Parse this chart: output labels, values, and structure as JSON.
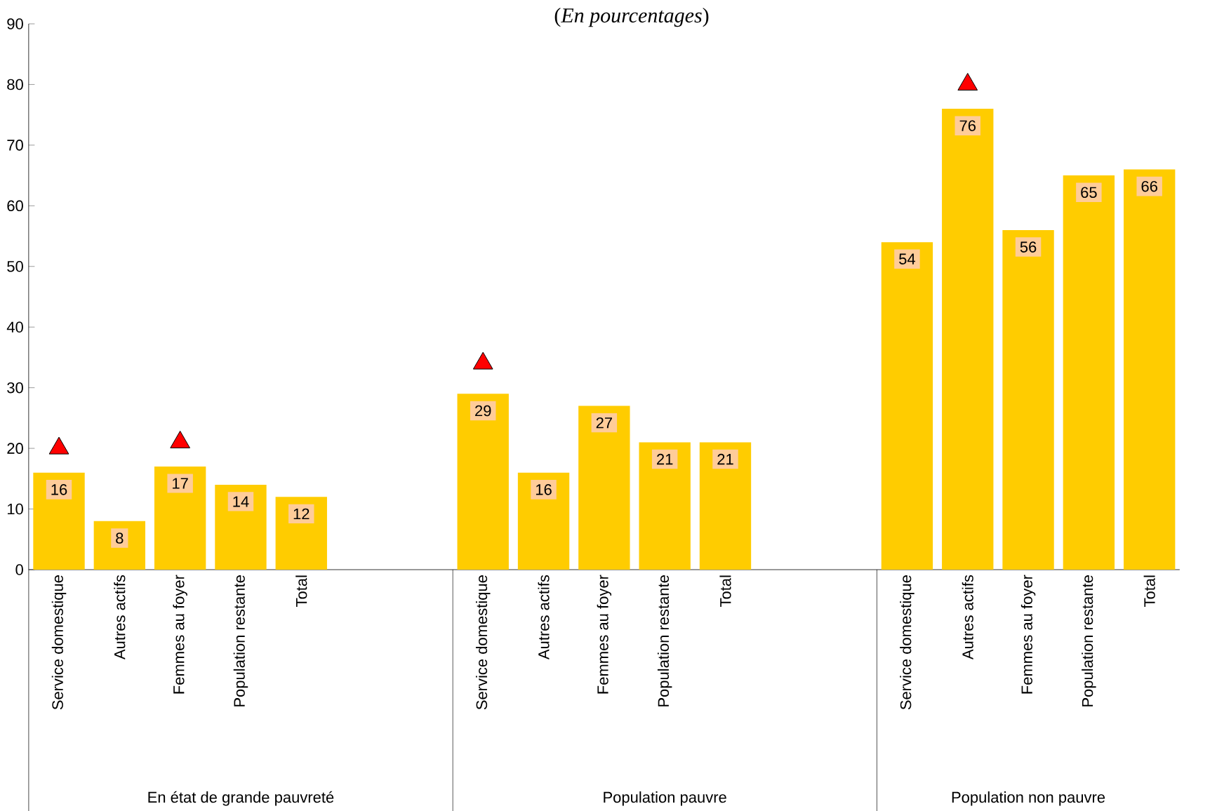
{
  "chart_data": {
    "type": "bar",
    "title": "(*En pourcentages*)",
    "categories": [
      "Service domestique",
      "Autres actifs",
      "Femmes au foyer",
      "Population restante",
      "Total",
      null,
      null,
      "Service domestique",
      "Autres actifs",
      "Femmes au foyer",
      "Population restante",
      "Total",
      null,
      null,
      "Service domestique",
      "Autres actifs",
      "Femmes au foyer",
      "Population restante",
      "Total"
    ],
    "series": [
      {
        "color": "#ffcc00",
        "values": [
          16,
          8,
          17,
          14,
          12,
          null,
          null,
          29,
          16,
          27,
          21,
          21,
          null,
          null,
          54,
          76,
          56,
          65,
          66
        ],
        "value_labels": [
          "16",
          "8",
          "17",
          "14",
          "12",
          null,
          null,
          "29",
          "16",
          "27",
          "21",
          "21",
          null,
          null,
          "54",
          "76",
          "56",
          "65",
          "66"
        ]
      },
      {
        "type": "scatter",
        "color": "#ff0000",
        "marker": "triangle",
        "values": [
          20,
          null,
          21,
          null,
          null,
          null,
          null,
          34,
          null,
          null,
          null,
          null,
          null,
          null,
          null,
          80,
          null,
          null,
          null
        ]
      }
    ],
    "annotations": [
      "En état de grande pauvreté",
      "Population pauvre",
      "Population non pauvre"
    ],
    "ylim": [
      0,
      90
    ],
    "yticks": [
      0,
      10,
      20,
      30,
      40,
      50,
      60,
      70,
      80,
      90
    ],
    "grid": false
  }
}
